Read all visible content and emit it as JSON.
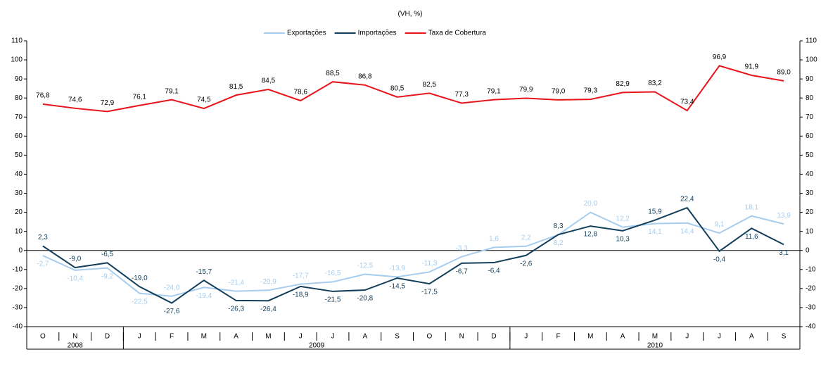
{
  "chart_data": {
    "type": "line",
    "title": "(VH, %)",
    "categories": [
      "O",
      "N",
      "D",
      "J",
      "F",
      "M",
      "A",
      "M",
      "J",
      "J",
      "A",
      "S",
      "O",
      "N",
      "D",
      "J",
      "F",
      "M",
      "A",
      "M",
      "J",
      "J",
      "A",
      "S"
    ],
    "year_groups": [
      {
        "label": "2008",
        "months": 3
      },
      {
        "label": "2009",
        "months": 12
      },
      {
        "label": "2010",
        "months": 9
      }
    ],
    "series": [
      {
        "name": "Exportações",
        "color": "#a6cdee",
        "values": [
          -2.7,
          -10.4,
          -9.2,
          -22.5,
          -24.0,
          -19.4,
          -21.4,
          -20.9,
          -17.7,
          -16.5,
          -12.5,
          -13.9,
          -11.3,
          -3.3,
          1.6,
          2.2,
          8.2,
          20.0,
          12.2,
          14.1,
          14.4,
          9.1,
          18.1,
          13.9
        ],
        "value_labels": [
          "-2,7",
          "-10,4",
          "-9,2",
          "-22,5",
          "-24,0",
          "-19,4",
          "-21,4",
          "-20,9",
          "-17,7",
          "-16,5",
          "-12,5",
          "-13,9",
          "-11,3",
          "-3,3",
          "1,6",
          "2,2",
          "8,2",
          "20,0",
          "12,2",
          "14,1",
          "14,4",
          "9,1",
          "18,1",
          "13,9"
        ]
      },
      {
        "name": "Importações",
        "color": "#123e5b",
        "values": [
          2.3,
          -9.0,
          -6.5,
          -19.0,
          -27.6,
          -15.7,
          -26.3,
          -26.4,
          -18.9,
          -21.5,
          -20.8,
          -14.5,
          -17.5,
          -6.7,
          -6.4,
          -2.6,
          8.3,
          12.8,
          10.3,
          15.9,
          22.4,
          -0.4,
          11.6,
          3.1
        ],
        "value_labels": [
          "2,3",
          "-9,0",
          "-6,5",
          "-19,0",
          "-27,6",
          "-15,7",
          "-26,3",
          "-26,4",
          "-18,9",
          "-21,5",
          "-20,8",
          "-14,5",
          "-17,5",
          "-6,7",
          "-6,4",
          "-2,6",
          "8,3",
          "12,8",
          "10,3",
          "15,9",
          "22,4",
          "-0,4",
          "11,6",
          "3,1"
        ]
      },
      {
        "name": "Taxa de Cobertura",
        "color": "#e8141b",
        "values": [
          76.8,
          74.6,
          72.9,
          76.1,
          79.1,
          74.5,
          81.5,
          84.5,
          78.6,
          88.5,
          86.8,
          80.5,
          82.5,
          77.3,
          79.1,
          79.9,
          79.0,
          79.3,
          82.9,
          83.2,
          73.4,
          96.9,
          91.9,
          89.0
        ],
        "value_labels": [
          "76,8",
          "74,6",
          "72,9",
          "76,1",
          "79,1",
          "74,5",
          "81,5",
          "84,5",
          "78,6",
          "88,5",
          "86,8",
          "80,5",
          "82,5",
          "77,3",
          "79,1",
          "79,9",
          "79,0",
          "79,3",
          "82,9",
          "83,2",
          "73,4",
          "96,9",
          "91,9",
          "89,0"
        ]
      }
    ],
    "ylim": [
      -40,
      110
    ],
    "yticks": [
      -40,
      -30,
      -20,
      -10,
      0,
      10,
      20,
      30,
      40,
      50,
      60,
      70,
      80,
      90,
      100,
      110
    ],
    "y2lim": [
      -40,
      110
    ],
    "y2ticks": [
      -40,
      -30,
      -20,
      -10,
      0,
      10,
      20,
      30,
      40,
      50,
      60,
      70,
      80,
      90,
      100,
      110
    ]
  }
}
